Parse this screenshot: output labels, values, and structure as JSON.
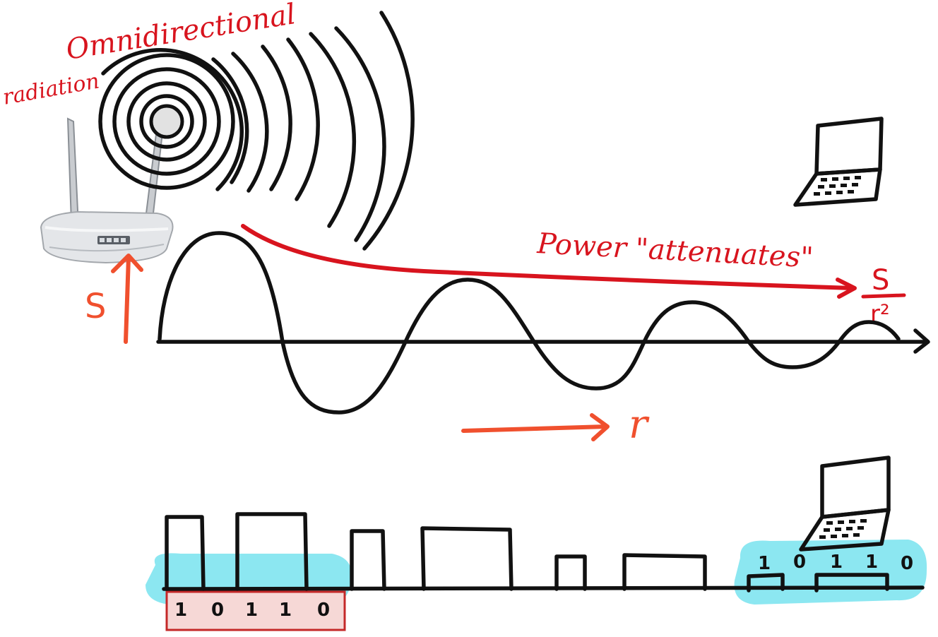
{
  "labels": {
    "omnidirectional": "Omnidirectional",
    "radiation": "radiation",
    "power_attenuates": "Power \"attenuates\"",
    "signal_symbol": "S",
    "fraction_numerator": "S",
    "fraction_denominator": "r²",
    "distance_symbol": "r"
  },
  "sender_bits": [
    "1",
    "0",
    "1",
    "1",
    "0"
  ],
  "receiver_bits": [
    "1",
    "0",
    "1",
    "1",
    "0"
  ],
  "colors": {
    "ink": "#111111",
    "annotation_red": "#d8141e",
    "symbol_orange": "#f0502e",
    "highlight_cyan": "#7fe4ef",
    "bit_box_fill": "#f6d8d6",
    "bit_box_stroke": "#c42828",
    "router_body": "#e4e6e9"
  },
  "icons": [
    "router-icon",
    "laptop-icon"
  ]
}
